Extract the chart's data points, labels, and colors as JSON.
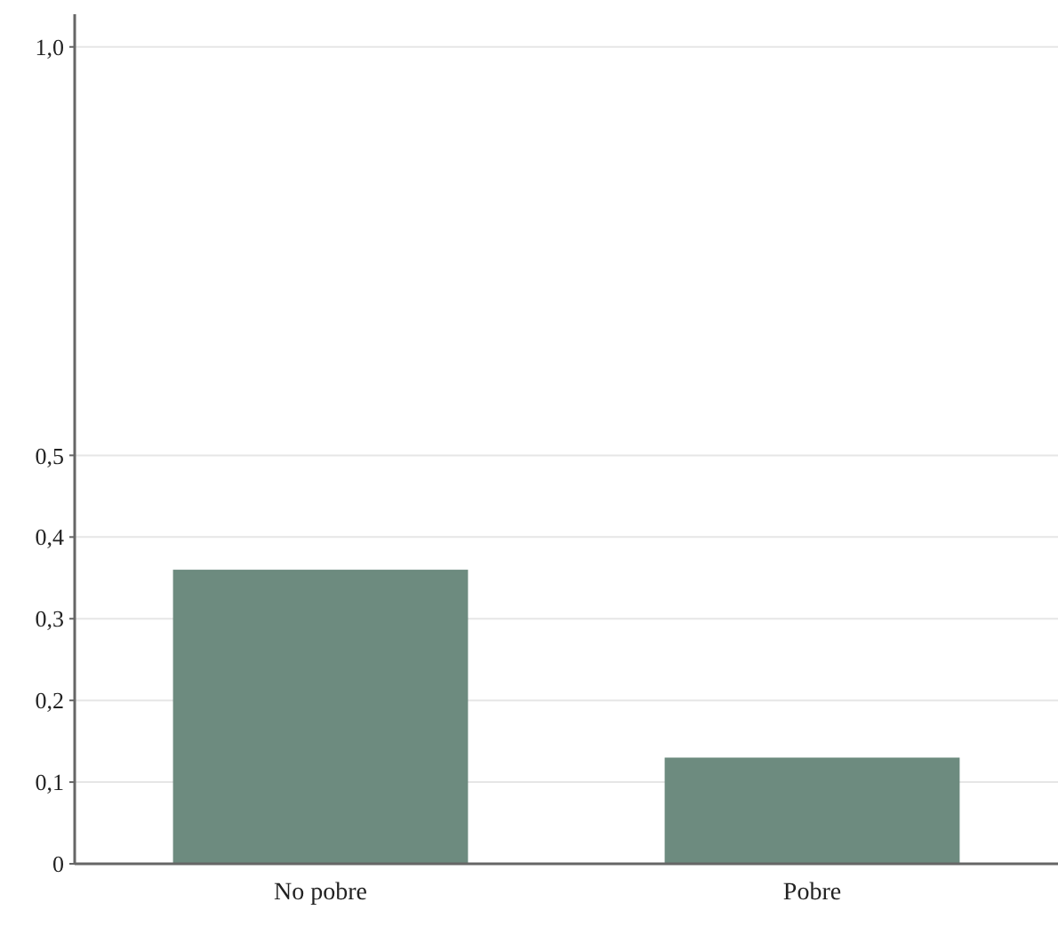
{
  "chart_data": {
    "type": "bar",
    "categories": [
      "No pobre",
      "Pobre"
    ],
    "values": [
      0.36,
      0.13
    ],
    "color": "#6d8b7f",
    "ylim": [
      0,
      1.04
    ],
    "yticks": [
      0,
      {
        "value": 0.1,
        "label": "0,1"
      },
      {
        "value": 0.2,
        "label": "0,2"
      },
      {
        "value": 0.3,
        "label": "0,3"
      },
      {
        "value": 0.4,
        "label": "0,4"
      },
      {
        "value": 0.5,
        "label": "0,5"
      },
      {
        "value": 1,
        "label": "1,0"
      }
    ],
    "grid": "y"
  }
}
